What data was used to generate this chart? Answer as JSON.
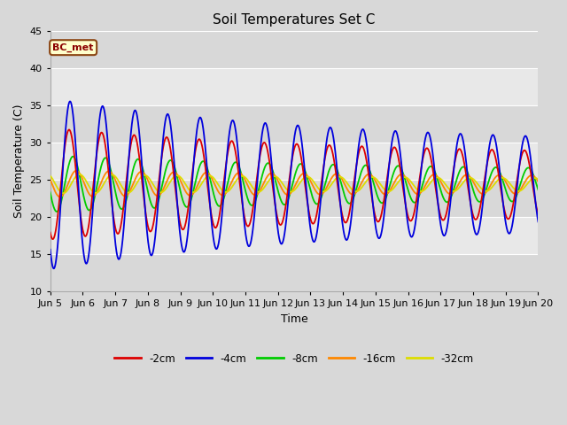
{
  "title": "Soil Temperatures Set C",
  "xlabel": "Time",
  "ylabel": "Soil Temperature (C)",
  "ylim": [
    10,
    45
  ],
  "annotation": "BC_met",
  "legend_labels": [
    "-2cm",
    "-4cm",
    "-8cm",
    "-16cm",
    "-32cm"
  ],
  "legend_colors": [
    "#dd0000",
    "#0000dd",
    "#00cc00",
    "#ff8800",
    "#dddd00"
  ],
  "x_tick_labels": [
    "Jun 5",
    "Jun 6",
    "Jun 7",
    "Jun 8",
    "Jun 9",
    "Jun 10",
    "Jun 11",
    "Jun 12",
    "Jun 13",
    "Jun 14",
    "Jun 15",
    "Jun 16",
    "Jun 17",
    "Jun 18",
    "Jun 19",
    "Jun 20"
  ],
  "background_color": "#d8d8d8",
  "plot_bg_color": "#e8e8e8",
  "band_light": "#e8e8e8",
  "band_dark": "#d8d8d8",
  "grid_color": "#ffffff"
}
